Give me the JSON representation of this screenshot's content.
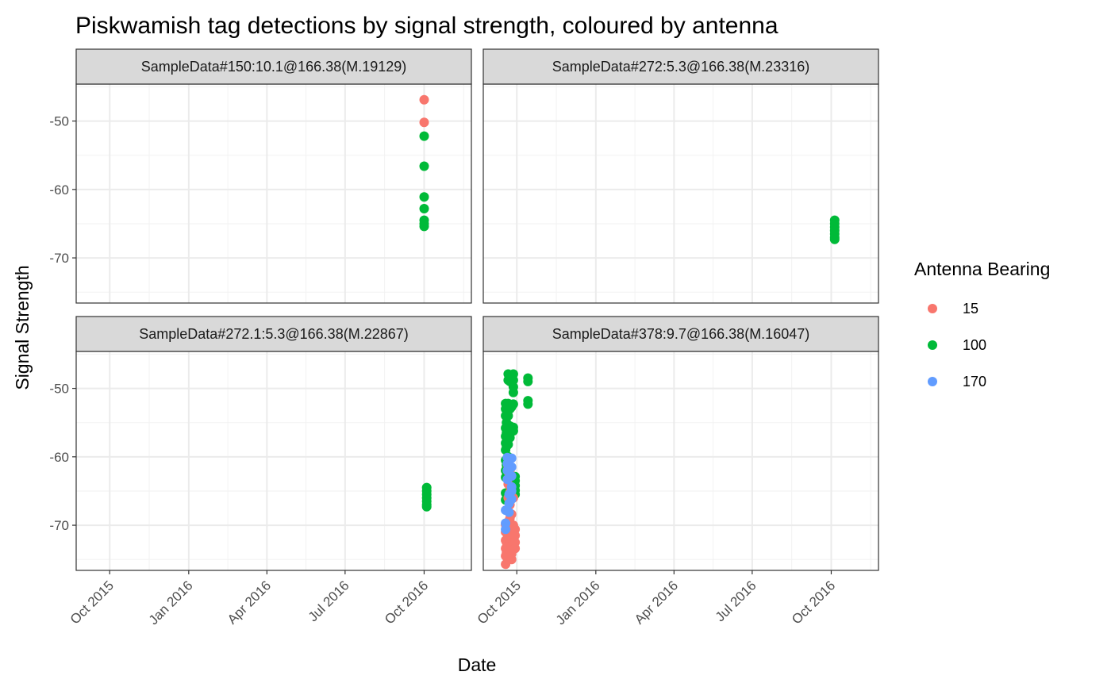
{
  "chart_data": {
    "type": "scatter",
    "title": "Piskwamish tag detections by signal strength, coloured by antenna",
    "xlabel": "Date",
    "ylabel": "Signal Strength",
    "legend": {
      "title": "Antenna Bearing",
      "position": "right",
      "entries": [
        {
          "label": "15",
          "color": "#F8766D"
        },
        {
          "label": "100",
          "color": "#00BA38"
        },
        {
          "label": "170",
          "color": "#619CFF"
        }
      ]
    },
    "grid": true,
    "x_axis": {
      "type": "date",
      "range": [
        "2015-08-23",
        "2016-11-25"
      ],
      "ticks": [
        {
          "date": "2015-10-01",
          "label": "Oct 2015"
        },
        {
          "date": "2016-01-01",
          "label": "Jan 2016"
        },
        {
          "date": "2016-04-01",
          "label": "Apr 2016"
        },
        {
          "date": "2016-07-01",
          "label": "Jul 2016"
        },
        {
          "date": "2016-10-01",
          "label": "Oct 2016"
        }
      ]
    },
    "y_axis": {
      "range": [
        -76.6,
        -44.6
      ],
      "ticks": [
        -50,
        -60,
        -70
      ]
    },
    "panels": [
      {
        "title": "SampleData#150:10.1@166.38(M.19129)",
        "series": [
          {
            "antenna": "15",
            "points": [
              [
                "2016-10-01",
                -46.9
              ],
              [
                "2016-10-01",
                -50.2
              ]
            ]
          },
          {
            "antenna": "100",
            "points": [
              [
                "2016-10-01",
                -52.2
              ],
              [
                "2016-10-01",
                -56.6
              ],
              [
                "2016-10-01",
                -61.1
              ],
              [
                "2016-10-01",
                -62.8
              ],
              [
                "2016-10-01",
                -64.5
              ],
              [
                "2016-10-01",
                -65.0
              ],
              [
                "2016-10-01",
                -65.4
              ]
            ]
          }
        ]
      },
      {
        "title": "SampleData#272:5.3@166.38(M.23316)",
        "series": [
          {
            "antenna": "100",
            "points": [
              [
                "2016-10-05",
                -64.5
              ],
              [
                "2016-10-05",
                -65.0
              ],
              [
                "2016-10-05",
                -65.5
              ],
              [
                "2016-10-05",
                -66.0
              ],
              [
                "2016-10-05",
                -66.5
              ],
              [
                "2016-10-05",
                -67.0
              ],
              [
                "2016-10-05",
                -67.3
              ]
            ]
          }
        ]
      },
      {
        "title": "SampleData#272.1:5.3@166.38(M.22867)",
        "series": [
          {
            "antenna": "100",
            "points": [
              [
                "2016-10-04",
                -64.5
              ],
              [
                "2016-10-04",
                -65.0
              ],
              [
                "2016-10-04",
                -65.5
              ],
              [
                "2016-10-04",
                -66.0
              ],
              [
                "2016-10-04",
                -66.5
              ],
              [
                "2016-10-04",
                -67.0
              ],
              [
                "2016-10-04",
                -67.3
              ]
            ]
          }
        ]
      },
      {
        "title": "SampleData#378:9.7@166.38(M.16047)",
        "series": [
          {
            "antenna": "100",
            "points": [
              [
                "2015-09-18",
                -52.2
              ],
              [
                "2015-09-18",
                -53.0
              ],
              [
                "2015-09-18",
                -54.0
              ],
              [
                "2015-09-18",
                -55.8
              ],
              [
                "2015-09-18",
                -57.0
              ],
              [
                "2015-09-18",
                -58.0
              ],
              [
                "2015-09-18",
                -59.0
              ],
              [
                "2015-09-18",
                -60.5
              ],
              [
                "2015-09-18",
                -62.0
              ],
              [
                "2015-09-18",
                -63.0
              ],
              [
                "2015-09-18",
                -65.3
              ],
              [
                "2015-09-18",
                -66.3
              ],
              [
                "2015-09-19",
                -52.3
              ],
              [
                "2015-09-19",
                -55.0
              ],
              [
                "2015-09-19",
                -56.5
              ],
              [
                "2015-09-19",
                -58.5
              ],
              [
                "2015-09-19",
                -61.2
              ],
              [
                "2015-09-21",
                -47.9
              ],
              [
                "2015-09-21",
                -48.8
              ],
              [
                "2015-09-21",
                -52.2
              ],
              [
                "2015-09-21",
                -54.0
              ],
              [
                "2015-09-21",
                -56.0
              ],
              [
                "2015-09-21",
                -58.2
              ],
              [
                "2015-09-21",
                -60.0
              ],
              [
                "2015-09-23",
                -48.1
              ],
              [
                "2015-09-23",
                -49.0
              ],
              [
                "2015-09-23",
                -53.0
              ],
              [
                "2015-09-23",
                -55.5
              ],
              [
                "2015-09-23",
                -57.2
              ],
              [
                "2015-09-25",
                -48.3
              ],
              [
                "2015-09-25",
                -52.7
              ],
              [
                "2015-09-25",
                -56.2
              ],
              [
                "2015-09-27",
                -47.9
              ],
              [
                "2015-09-27",
                -48.8
              ],
              [
                "2015-09-27",
                -49.8
              ],
              [
                "2015-09-27",
                -50.6
              ],
              [
                "2015-09-27",
                -52.3
              ],
              [
                "2015-09-27",
                -55.7
              ],
              [
                "2015-09-27",
                -56.2
              ],
              [
                "2015-09-29",
                -62.9
              ],
              [
                "2015-09-29",
                -63.5
              ],
              [
                "2015-09-29",
                -64.2
              ],
              [
                "2015-09-29",
                -64.9
              ],
              [
                "2015-09-29",
                -65.5
              ],
              [
                "2015-10-14",
                -48.5
              ],
              [
                "2015-10-14",
                -49.0
              ],
              [
                "2015-10-14",
                -51.8
              ],
              [
                "2015-10-14",
                -52.3
              ]
            ]
          },
          {
            "antenna": "15",
            "points": [
              [
                "2015-09-18",
                -69.9
              ],
              [
                "2015-09-18",
                -71.0
              ],
              [
                "2015-09-18",
                -72.2
              ],
              [
                "2015-09-18",
                -73.4
              ],
              [
                "2015-09-18",
                -74.5
              ],
              [
                "2015-09-18",
                -75.7
              ],
              [
                "2015-09-19",
                -70.5
              ],
              [
                "2015-09-19",
                -72.5
              ],
              [
                "2015-09-19",
                -74.0
              ],
              [
                "2015-09-21",
                -61.4
              ],
              [
                "2015-09-21",
                -62.2
              ],
              [
                "2015-09-21",
                -64.0
              ],
              [
                "2015-09-21",
                -66.0
              ],
              [
                "2015-09-21",
                -68.0
              ],
              [
                "2015-09-21",
                -69.5
              ],
              [
                "2015-09-21",
                -70.5
              ],
              [
                "2015-09-21",
                -71.5
              ],
              [
                "2015-09-21",
                -73.0
              ],
              [
                "2015-09-21",
                -74.3
              ],
              [
                "2015-09-23",
                -62.0
              ],
              [
                "2015-09-23",
                -65.2
              ],
              [
                "2015-09-23",
                -67.0
              ],
              [
                "2015-09-23",
                -69.0
              ],
              [
                "2015-09-23",
                -70.8
              ],
              [
                "2015-09-23",
                -72.3
              ],
              [
                "2015-09-23",
                -73.8
              ],
              [
                "2015-09-25",
                -65.8
              ],
              [
                "2015-09-25",
                -68.4
              ],
              [
                "2015-09-25",
                -70.0
              ],
              [
                "2015-09-25",
                -71.8
              ],
              [
                "2015-09-25",
                -73.0
              ],
              [
                "2015-09-25",
                -74.2
              ],
              [
                "2015-09-25",
                -75.0
              ],
              [
                "2015-09-27",
                -66.0
              ],
              [
                "2015-09-27",
                -70.0
              ],
              [
                "2015-09-27",
                -71.2
              ],
              [
                "2015-09-27",
                -72.5
              ],
              [
                "2015-09-27",
                -73.5
              ],
              [
                "2015-09-29",
                -70.6
              ],
              [
                "2015-09-29",
                -71.5
              ],
              [
                "2015-09-29",
                -72.5
              ],
              [
                "2015-09-29",
                -73.4
              ]
            ]
          },
          {
            "antenna": "170",
            "points": [
              [
                "2015-09-18",
                -67.8
              ],
              [
                "2015-09-18",
                -69.7
              ],
              [
                "2015-09-18",
                -70.6
              ],
              [
                "2015-09-20",
                -60.1
              ],
              [
                "2015-09-20",
                -61.0
              ],
              [
                "2015-09-20",
                -62.0
              ],
              [
                "2015-09-20",
                -63.3
              ],
              [
                "2015-09-22",
                -65.5
              ],
              [
                "2015-09-22",
                -66.8
              ],
              [
                "2015-09-22",
                -68.1
              ],
              [
                "2015-09-25",
                -60.2
              ],
              [
                "2015-09-25",
                -61.5
              ],
              [
                "2015-09-25",
                -62.8
              ],
              [
                "2015-09-25",
                -64.4
              ],
              [
                "2015-09-25",
                -65.0
              ],
              [
                "2015-09-25",
                -66.2
              ]
            ]
          }
        ]
      }
    ]
  }
}
